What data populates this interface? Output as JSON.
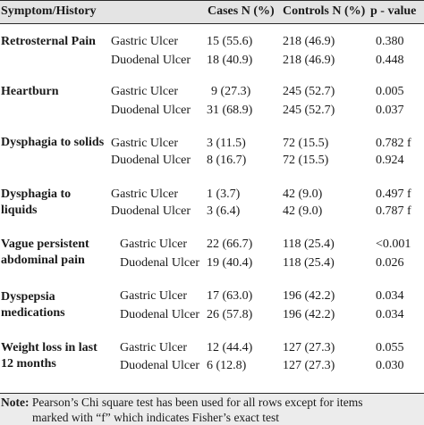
{
  "table": {
    "headers": {
      "symptom": "Symptom/History",
      "cases": "Cases N (%)",
      "controls": "Controls N (%)",
      "p": "p - value"
    },
    "groups": [
      {
        "symptom": "Retrosternal Pain",
        "rows": [
          {
            "type": "Gastric Ulcer",
            "cases": "15 (55.6)",
            "controls": "218 (46.9)",
            "p": "0.380"
          },
          {
            "type": "Duodenal Ulcer",
            "cases": "18 (40.9)",
            "controls": "218 (46.9)",
            "p": "0.448"
          }
        ]
      },
      {
        "symptom": "Heartburn",
        "rows": [
          {
            "type": "Gastric Ulcer",
            "cases": "9 (27.3)",
            "controls": "245 (52.7)",
            "p": "0.005"
          },
          {
            "type": "Duodenal Ulcer",
            "cases": "31 (68.9)",
            "controls": "245 (52.7)",
            "p": "0.037"
          }
        ]
      },
      {
        "symptom": "Dysphagia to solids",
        "rows": [
          {
            "type": "Gastric Ulcer",
            "cases": "3 (11.5)",
            "controls": "72 (15.5)",
            "p": "0.782 f"
          },
          {
            "type": "Duodenal Ulcer",
            "cases": "8 (16.7)",
            "controls": "72 (15.5)",
            "p": "0.924"
          }
        ]
      },
      {
        "symptom": "Dysphagia to liquids",
        "rows": [
          {
            "type": "Gastric Ulcer",
            "cases": "1 (3.7)",
            "controls": "42 (9.0)",
            "p": "0.497 f"
          },
          {
            "type": "Duodenal Ulcer",
            "cases": "3 (6.4)",
            "controls": "42 (9.0)",
            "p": "0.787 f"
          }
        ]
      },
      {
        "symptom": "Vague persistent abdominal pain",
        "rows": [
          {
            "type": "Gastric Ulcer",
            "cases": "22 (66.7)",
            "controls": "118 (25.4)",
            "p": "<0.001"
          },
          {
            "type": "Duodenal Ulcer",
            "cases": "19 (40.4)",
            "controls": "118 (25.4)",
            "p": "0.026"
          }
        ]
      },
      {
        "symptom": "Dyspepsia medications",
        "rows": [
          {
            "type": "Gastric Ulcer",
            "cases": "17 (63.0)",
            "controls": "196 (42.2)",
            "p": "0.034"
          },
          {
            "type": "Duodenal Ulcer",
            "cases": "26 (57.8)",
            "controls": "196 (42.2)",
            "p": "0.034"
          }
        ]
      },
      {
        "symptom": "Weight loss in last 12 months",
        "rows": [
          {
            "type": "Gastric Ulcer",
            "cases": "12 (44.4)",
            "controls": "127 (27.3)",
            "p": "0.055"
          },
          {
            "type": "Duodenal Ulcer",
            "cases": "6 (12.8)",
            "controls": "127 (27.3)",
            "p": "0.030"
          }
        ]
      }
    ]
  },
  "note": {
    "label": "Note:",
    "line1": " Pearson’s Chi square test has been used for all rows except for items",
    "line2": "marked with “f” which indicates Fisher’s exact test"
  }
}
